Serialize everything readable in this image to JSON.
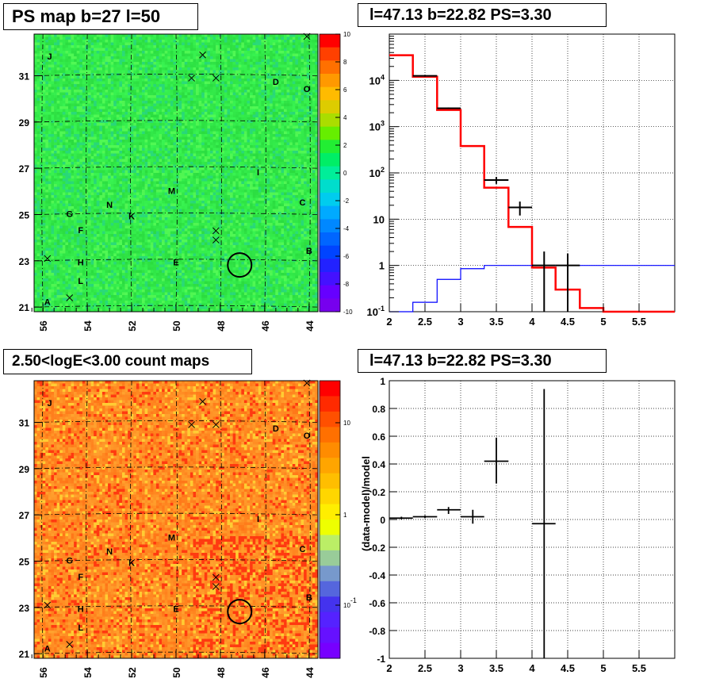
{
  "titles": {
    "ps_map": "PS map b=27 l=50",
    "spectrum": "l=47.13 b=22.82 PS=3.30",
    "count_map": "2.50<logE<3.00 count maps",
    "residual": "l=47.13 b=22.82 PS=3.30"
  },
  "chart_data": [
    {
      "type": "heatmap",
      "name": "ps-map",
      "x_axis": {
        "range": [
          56.4,
          43.6
        ],
        "ticks": [
          "56",
          "54",
          "52",
          "50",
          "48",
          "46",
          "44"
        ],
        "reversed": true
      },
      "y_axis": {
        "range": [
          20.8,
          32.8
        ],
        "ticks": [
          "21",
          "23",
          "25",
          "27",
          "29",
          "31"
        ]
      },
      "colorbar": {
        "range": [
          -10,
          10
        ],
        "ticks": [
          "10",
          "8",
          "6",
          "4",
          "2",
          "0",
          "-2",
          "-4",
          "-6",
          "-8",
          "-10"
        ]
      },
      "base_color": "#2ee84a",
      "grid": "dashed"
    },
    {
      "type": "line",
      "name": "spectrum",
      "x_axis": {
        "range": [
          2,
          6
        ],
        "ticks": [
          "2",
          "2.5",
          "3",
          "3.5",
          "4",
          "4.5",
          "5",
          "5.5"
        ]
      },
      "y_axis": {
        "scale": "log",
        "range": [
          0.1,
          100000
        ],
        "ticks": [
          "10^{-1}",
          "1",
          "10",
          "10^{2}",
          "10^{3}",
          "10^{4}"
        ]
      },
      "grid": true,
      "series": [
        {
          "style": "step",
          "color": "#ff0000",
          "bins": [
            2.0,
            2.33,
            2.67,
            3.0,
            3.33,
            3.67,
            4.0,
            4.33,
            4.67,
            5.0,
            5.33,
            5.67,
            6.0
          ],
          "values": [
            35000,
            12000,
            2300,
            380,
            48,
            6.8,
            0.9,
            0.3,
            0.12,
            0.1,
            0.1,
            0.1
          ]
        },
        {
          "style": "step",
          "color": "#0000ff",
          "bins": [
            2.0,
            2.33,
            2.67,
            3.0,
            3.33,
            3.67,
            4.0,
            4.33,
            4.67,
            5.0,
            5.33,
            5.67,
            6.0
          ],
          "values": [
            0.1,
            0.16,
            0.5,
            0.85,
            1.0,
            1.0,
            1.0,
            1.0,
            1.0,
            1.0,
            1.0,
            1.0
          ]
        },
        {
          "style": "errorbar",
          "color": "#000000",
          "points": [
            {
              "x": 2.5,
              "y": 12500,
              "xlo": 2.33,
              "xhi": 2.67,
              "ylo": 12000,
              "yhi": 13000
            },
            {
              "x": 2.83,
              "y": 2500,
              "xlo": 2.67,
              "xhi": 3.0,
              "ylo": 2400,
              "yhi": 2600
            },
            {
              "x": 3.5,
              "y": 70,
              "xlo": 3.33,
              "xhi": 3.67,
              "ylo": 58,
              "yhi": 82
            },
            {
              "x": 3.83,
              "y": 18,
              "xlo": 3.67,
              "xhi": 4.0,
              "ylo": 12,
              "yhi": 24
            },
            {
              "x": 4.17,
              "y": 1.0,
              "xlo": 4.0,
              "xhi": 4.33,
              "ylo": 0.1,
              "yhi": 2.0
            },
            {
              "x": 4.5,
              "y": 1.0,
              "xlo": 4.33,
              "xhi": 4.67,
              "ylo": 0.1,
              "yhi": 1.8
            }
          ]
        }
      ]
    },
    {
      "type": "heatmap",
      "name": "count-map",
      "x_axis": {
        "range": [
          56.4,
          43.6
        ],
        "ticks": [
          "56",
          "54",
          "52",
          "50",
          "48",
          "46",
          "44"
        ],
        "reversed": true
      },
      "y_axis": {
        "range": [
          20.8,
          32.8
        ],
        "ticks": [
          "21",
          "23",
          "25",
          "27",
          "29",
          "31"
        ]
      },
      "colorbar": {
        "scale": "log",
        "ticks": [
          "10",
          "1",
          "10^{-1}"
        ]
      },
      "base_color": "#ff8c1a",
      "grid": "dashed"
    },
    {
      "type": "scatter",
      "name": "residual",
      "x_axis": {
        "range": [
          2,
          6
        ],
        "ticks": [
          "2",
          "2.5",
          "3",
          "3.5",
          "4",
          "4.5",
          "5",
          "5.5"
        ]
      },
      "y_axis": {
        "range": [
          -1,
          1
        ],
        "ticks": [
          "1",
          "0.8",
          "0.6",
          "0.4",
          "0.2",
          "0",
          "-0.2",
          "-0.4",
          "-0.6",
          "-0.8",
          "-1"
        ]
      },
      "ylabel": "(data-model)/model",
      "grid": true,
      "points": [
        {
          "x": 2.17,
          "y": 0.01,
          "xlo": 2.0,
          "xhi": 2.33,
          "ylo": 0.0,
          "yhi": 0.02
        },
        {
          "x": 2.5,
          "y": 0.02,
          "xlo": 2.33,
          "xhi": 2.67,
          "ylo": 0.01,
          "yhi": 0.03
        },
        {
          "x": 2.83,
          "y": 0.07,
          "xlo": 2.67,
          "xhi": 3.0,
          "ylo": 0.04,
          "yhi": 0.09
        },
        {
          "x": 3.17,
          "y": 0.02,
          "xlo": 3.0,
          "xhi": 3.33,
          "ylo": -0.03,
          "yhi": 0.07
        },
        {
          "x": 3.5,
          "y": 0.42,
          "xlo": 3.33,
          "xhi": 3.67,
          "ylo": 0.26,
          "yhi": 0.59
        },
        {
          "x": 4.17,
          "y": -0.03,
          "xlo": 4.0,
          "xhi": 4.33,
          "ylo": -1.0,
          "yhi": 0.94
        }
      ]
    }
  ],
  "source_labels": [
    {
      "label": "J",
      "l": 55.7,
      "b": 31.7
    },
    {
      "label": "D",
      "l": 45.5,
      "b": 30.6
    },
    {
      "label": "O",
      "l": 44.1,
      "b": 30.3
    },
    {
      "label": "I",
      "l": 46.3,
      "b": 26.7
    },
    {
      "label": "M",
      "l": 50.2,
      "b": 25.9
    },
    {
      "label": "N",
      "l": 53.0,
      "b": 25.3
    },
    {
      "label": "K",
      "l": 52.0,
      "b": 24.8
    },
    {
      "label": "G",
      "l": 54.8,
      "b": 24.9
    },
    {
      "label": "C",
      "l": 44.3,
      "b": 25.4
    },
    {
      "label": "F",
      "l": 54.3,
      "b": 24.2
    },
    {
      "label": "H",
      "l": 54.3,
      "b": 22.8
    },
    {
      "label": "E",
      "l": 50.0,
      "b": 22.8
    },
    {
      "label": "B",
      "l": 44.0,
      "b": 23.3
    },
    {
      "label": "L",
      "l": 54.3,
      "b": 22.0
    },
    {
      "label": "A",
      "l": 55.8,
      "b": 21.1
    }
  ],
  "cross_markers": [
    {
      "l": 44.1,
      "b": 32.7
    },
    {
      "l": 48.8,
      "b": 31.9
    },
    {
      "l": 49.3,
      "b": 30.9
    },
    {
      "l": 48.2,
      "b": 30.9
    },
    {
      "l": 48.2,
      "b": 24.3
    },
    {
      "l": 48.2,
      "b": 23.9
    },
    {
      "l": 55.8,
      "b": 23.1
    },
    {
      "l": 54.8,
      "b": 21.4
    }
  ],
  "circle_marker": {
    "l": 47.13,
    "b": 22.82
  }
}
